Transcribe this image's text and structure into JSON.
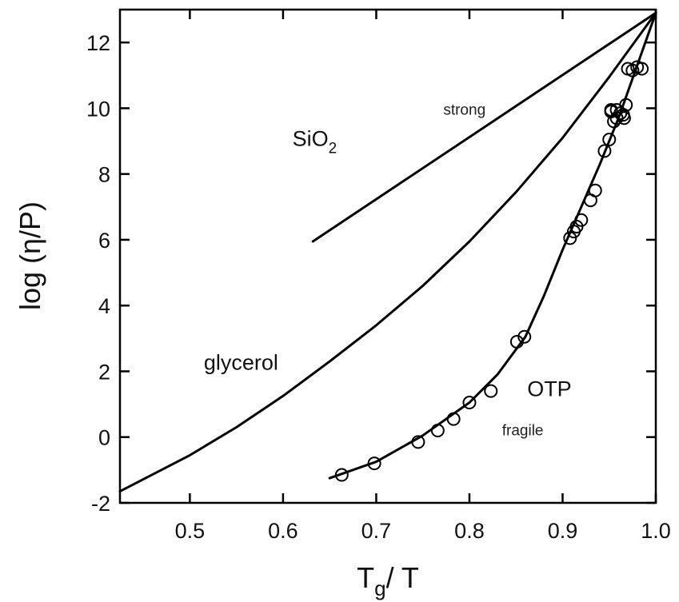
{
  "chart_data": {
    "type": "line",
    "title": "",
    "xlabel": {
      "main": "T",
      "sub": "g",
      "rest": "/ T"
    },
    "ylabel": "log (η/P)",
    "xlim": [
      0.425,
      1.0
    ],
    "ylim": [
      -2,
      13
    ],
    "xticks": [
      {
        "value": 0.5,
        "label": "0.5"
      },
      {
        "value": 0.6,
        "label": "0.6"
      },
      {
        "value": 0.7,
        "label": "0.7"
      },
      {
        "value": 0.8,
        "label": "0.8"
      },
      {
        "value": 0.9,
        "label": "0.9"
      },
      {
        "value": 1.0,
        "label": "1.0"
      }
    ],
    "yticks": [
      {
        "value": -2,
        "label": "-2"
      },
      {
        "value": 0,
        "label": "0"
      },
      {
        "value": 2,
        "label": "2"
      },
      {
        "value": 4,
        "label": "4"
      },
      {
        "value": 6,
        "label": "6"
      },
      {
        "value": 8,
        "label": "8"
      },
      {
        "value": 10,
        "label": "10"
      },
      {
        "value": 12,
        "label": "12"
      }
    ],
    "grid": false,
    "series": [
      {
        "key": "sio2",
        "kind": "line",
        "x": [
          0.632,
          1.0
        ],
        "y": [
          5.95,
          12.9
        ]
      },
      {
        "key": "glycerol",
        "kind": "line",
        "x": [
          0.425,
          0.5,
          0.55,
          0.6,
          0.65,
          0.7,
          0.75,
          0.8,
          0.85,
          0.9,
          0.95,
          1.0
        ],
        "y": [
          -1.65,
          -0.55,
          0.3,
          1.25,
          2.3,
          3.4,
          4.6,
          5.95,
          7.45,
          9.1,
          10.95,
          12.9
        ]
      },
      {
        "key": "otp-fit",
        "kind": "line",
        "x": [
          0.65,
          0.7,
          0.75,
          0.8,
          0.83,
          0.86,
          0.88,
          0.9,
          0.92,
          0.94,
          0.96,
          0.98,
          1.0
        ],
        "y": [
          -1.25,
          -0.75,
          0.05,
          1.05,
          1.9,
          3.05,
          4.3,
          5.7,
          7.0,
          8.3,
          9.7,
          11.3,
          12.9
        ]
      },
      {
        "key": "otp-data",
        "kind": "scatter",
        "x": [
          0.663,
          0.698,
          0.745,
          0.766,
          0.783,
          0.8,
          0.823,
          0.851,
          0.859,
          0.908,
          0.912,
          0.915,
          0.92,
          0.93,
          0.935,
          0.945,
          0.95,
          0.952,
          0.955,
          0.958,
          0.962,
          0.966,
          0.968,
          0.97,
          0.975,
          0.98,
          0.985,
          0.952,
          0.958,
          0.965
        ],
        "y": [
          -1.15,
          -0.8,
          -0.15,
          0.2,
          0.55,
          1.05,
          1.4,
          2.9,
          3.05,
          6.05,
          6.25,
          6.4,
          6.6,
          7.2,
          7.5,
          8.7,
          9.05,
          9.9,
          9.6,
          9.7,
          9.85,
          9.7,
          10.1,
          11.2,
          11.15,
          11.25,
          11.2,
          9.95,
          9.95,
          9.8
        ]
      }
    ],
    "annotations": [
      {
        "key": "sio2-label",
        "text": "SiO",
        "sub": "2",
        "x": 0.61,
        "y": 8.85,
        "size": "big"
      },
      {
        "key": "strong-label",
        "text": "strong",
        "x": 0.772,
        "y": 9.8,
        "size": "small"
      },
      {
        "key": "glycerol-label",
        "text": "glycerol",
        "x": 0.515,
        "y": 2.05,
        "size": "big"
      },
      {
        "key": "otp-label",
        "text": "OTP",
        "x": 0.862,
        "y": 1.25,
        "size": "big"
      },
      {
        "key": "fragile-label",
        "text": "fragile",
        "x": 0.835,
        "y": 0.05,
        "size": "small"
      }
    ]
  }
}
